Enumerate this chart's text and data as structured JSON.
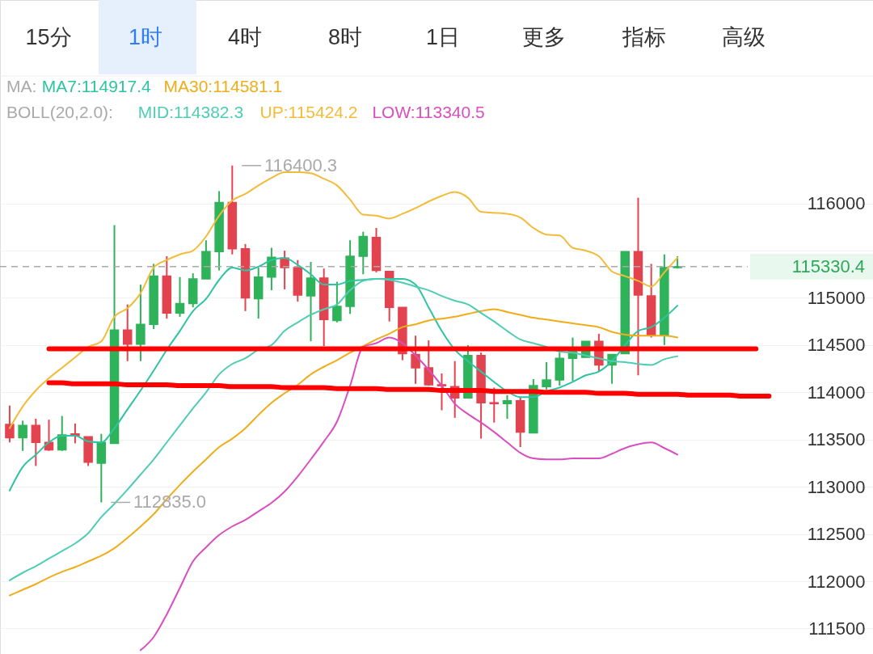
{
  "chart_data": {
    "type": "candlestick",
    "categories": [
      null,
      null,
      null,
      null,
      null,
      null,
      null,
      null,
      null,
      null,
      null,
      null,
      null,
      null,
      null,
      null,
      null,
      null,
      null,
      null,
      null,
      null,
      null,
      null,
      null,
      null,
      null,
      null,
      null,
      null,
      null,
      null,
      null,
      null,
      null,
      null,
      null,
      null,
      null,
      null,
      null,
      null,
      null,
      null,
      null,
      null,
      null,
      null,
      null,
      null,
      null,
      null,
      null,
      null,
      null,
      null,
      null,
      null,
      null
    ],
    "ohlc": [
      [
        113660,
        113860,
        113470,
        113520
      ],
      [
        113520,
        113700,
        113380,
        113650
      ],
      [
        113650,
        113720,
        113220,
        113470
      ],
      [
        113470,
        113710,
        113380,
        113390
      ],
      [
        113390,
        113750,
        113380,
        113550
      ],
      [
        113560,
        113670,
        113460,
        113540
      ],
      [
        113530,
        113530,
        113220,
        113260
      ],
      [
        113250,
        113560,
        112835.0,
        113470
      ],
      [
        113460,
        115770,
        113460,
        114660
      ],
      [
        114660,
        114930,
        114330,
        114510
      ],
      [
        114510,
        115140,
        114330,
        114720
      ],
      [
        114720,
        115360,
        114670,
        115230
      ],
      [
        115230,
        115440,
        114780,
        114840
      ],
      [
        114840,
        115220,
        114800,
        114940
      ],
      [
        114940,
        115260,
        114900,
        115200
      ],
      [
        115200,
        115610,
        115200,
        115490
      ],
      [
        115490,
        116130,
        115290,
        116010
      ],
      [
        116010,
        116400.3,
        115460,
        115520
      ],
      [
        115520,
        115570,
        114860,
        115000
      ],
      [
        114990,
        115320,
        114780,
        115220
      ],
      [
        115220,
        115530,
        115080,
        115430
      ],
      [
        115420,
        115500,
        115090,
        115320
      ],
      [
        115320,
        115400,
        114960,
        115030
      ],
      [
        115020,
        115380,
        114540,
        115210
      ],
      [
        115210,
        115310,
        114490,
        114770
      ],
      [
        114760,
        115170,
        114740,
        114910
      ],
      [
        114910,
        115610,
        114830,
        115440
      ],
      [
        115440,
        115700,
        115250,
        115650
      ],
      [
        115640,
        115740,
        115270,
        115290
      ],
      [
        115280,
        115280,
        114750,
        114900
      ],
      [
        114900,
        114900,
        114340,
        114410
      ],
      [
        114400,
        114600,
        114090,
        114260
      ],
      [
        114260,
        114550,
        114070,
        114080
      ],
      [
        114080,
        114200,
        113810,
        114070
      ],
      [
        114060,
        114330,
        113730,
        113940
      ],
      [
        113940,
        114500,
        113940,
        114390
      ],
      [
        114390,
        114420,
        113510,
        113890
      ],
      [
        113890,
        114050,
        113680,
        113880
      ],
      [
        113880,
        113970,
        113720,
        113910
      ],
      [
        113910,
        113950,
        113420,
        113580
      ],
      [
        113570,
        114140,
        113570,
        114070
      ],
      [
        114060,
        114320,
        114030,
        114130
      ],
      [
        114130,
        114420,
        114070,
        114360
      ],
      [
        114360,
        114580,
        114120,
        114430
      ],
      [
        114370,
        114540,
        114370,
        114540
      ],
      [
        114540,
        114620,
        114220,
        114290
      ],
      [
        114290,
        114400,
        114090,
        114400
      ],
      [
        114410,
        115490,
        114410,
        115490
      ],
      [
        115490,
        116060,
        114180,
        115030
      ],
      [
        115020,
        115360,
        114580,
        114600
      ],
      [
        114600,
        115460,
        114500,
        115320
      ],
      [
        115320,
        115440,
        115310,
        115330.4
      ],
      null,
      null,
      null,
      null,
      null,
      null,
      null
    ],
    "series": [
      {
        "name": "MA7:114917.4",
        "type": "line",
        "color": "#2ec4a2",
        "values": [
          112960,
          113210,
          113340,
          113470,
          113540,
          113540,
          113480,
          113470,
          113620,
          113820,
          114020,
          114230,
          114450,
          114650,
          114860,
          114990,
          115190,
          115320,
          115290,
          115330,
          115400,
          115420,
          115350,
          115250,
          115140,
          115140,
          115180,
          115190,
          115200,
          115200,
          115200,
          115140,
          114900,
          114650,
          114450,
          114330,
          114220,
          114110,
          114010,
          113950,
          113950,
          114010,
          114050,
          114110,
          114180,
          114220,
          114330,
          114500,
          114650,
          114690,
          114790,
          114917.4,
          null,
          null,
          null,
          null,
          null,
          null,
          null
        ]
      },
      {
        "name": "MA30:114581.1",
        "type": "line",
        "color": "#efad1a",
        "values": [
          111850,
          111910,
          111970,
          112040,
          112100,
          112150,
          112210,
          112270,
          112350,
          112460,
          112580,
          112710,
          112870,
          113020,
          113160,
          113290,
          113420,
          113510,
          113620,
          113760,
          113890,
          113990,
          114080,
          114190,
          114270,
          114340,
          114420,
          114490,
          114560,
          114620,
          114690,
          114720,
          114760,
          114780,
          114800,
          114830,
          114860,
          114880,
          114850,
          114820,
          114790,
          114770,
          114750,
          114730,
          114710,
          114690,
          114640,
          114610,
          114600,
          114600,
          114600,
          114581.1,
          null,
          null,
          null,
          null,
          null,
          null,
          null
        ]
      },
      {
        "name": "MID:114382.3",
        "type": "line",
        "color": "#4fcdb4",
        "values": [
          112010,
          112090,
          112160,
          112240,
          112320,
          112400,
          112510,
          112680,
          112820,
          112970,
          113130,
          113290,
          113470,
          113650,
          113830,
          114000,
          114190,
          114300,
          114360,
          114450,
          114500,
          114650,
          114740,
          114820,
          114880,
          114930,
          115080,
          115180,
          115200,
          115190,
          115160,
          115120,
          115080,
          115020,
          114970,
          114930,
          114840,
          114750,
          114650,
          114560,
          114520,
          114480,
          114430,
          114420,
          114390,
          114360,
          114330,
          114320,
          114300,
          114290,
          114350,
          114382.3,
          null,
          null,
          null,
          null,
          null,
          null,
          null
        ]
      },
      {
        "name": "UP:115424.2",
        "type": "line",
        "color": "#f3bc38",
        "values": [
          113620,
          113850,
          114020,
          114150,
          114260,
          114370,
          114480,
          114540,
          114800,
          114890,
          115050,
          115320,
          115400,
          115460,
          115500,
          115650,
          115870,
          116030,
          116100,
          116190,
          116270,
          116330,
          116330,
          116320,
          116260,
          116190,
          116040,
          115880,
          115870,
          115840,
          115890,
          115950,
          116020,
          116080,
          116120,
          116060,
          115910,
          115900,
          115890,
          115850,
          115740,
          115670,
          115660,
          115530,
          115500,
          115440,
          115280,
          115230,
          115180,
          115120,
          115270,
          115424.2,
          null,
          null,
          null,
          null,
          null,
          null,
          null
        ]
      },
      {
        "name": "LOW:113340.5",
        "type": "line",
        "color": "#d94fbf",
        "values": [
          null,
          null,
          null,
          null,
          null,
          null,
          null,
          null,
          null,
          null,
          111270,
          111410,
          111650,
          111930,
          112210,
          112360,
          112490,
          112580,
          112650,
          112740,
          112830,
          112950,
          113110,
          113290,
          113480,
          113690,
          114070,
          114480,
          114520,
          114580,
          114520,
          114390,
          114240,
          114070,
          113880,
          113770,
          113680,
          113580,
          113470,
          113360,
          113300,
          113290,
          113290,
          113300,
          113300,
          113300,
          113350,
          113410,
          113450,
          113470,
          113410,
          113340.5,
          null,
          null,
          null,
          null,
          null,
          null,
          null
        ]
      },
      {
        "type": "line",
        "color": "#ff0000",
        "values": [
          null,
          null,
          null,
          114460,
          114460,
          114460,
          114460,
          114460,
          114460,
          114460,
          114460,
          114460,
          114460,
          114460,
          114460,
          114460,
          114460,
          114460,
          114460,
          114460,
          114460,
          114460,
          114460,
          114460,
          114460,
          114460,
          114460,
          114460,
          114460,
          114460,
          114460,
          114460,
          114460,
          114460,
          114460,
          114460,
          114460,
          114460,
          114460,
          114460,
          114460,
          114460,
          114460,
          114460,
          114460,
          114460,
          114460,
          114460,
          114460,
          114460,
          114460,
          114460,
          114460,
          114460,
          114460,
          114460,
          114460,
          114460,
          null
        ]
      },
      {
        "type": "line",
        "color": "#ff0000",
        "values": [
          null,
          null,
          null,
          114100,
          114100,
          114090,
          114090,
          114090,
          114090,
          114080,
          114080,
          114080,
          114080,
          114070,
          114070,
          114070,
          114070,
          114060,
          114060,
          114060,
          114060,
          114050,
          114050,
          114050,
          114050,
          114040,
          114040,
          114040,
          114040,
          114030,
          114030,
          114030,
          114030,
          114020,
          114020,
          114020,
          114020,
          114010,
          114010,
          114010,
          114010,
          114000,
          114000,
          114000,
          114000,
          113990,
          113990,
          113990,
          113980,
          113980,
          113980,
          113980,
          113970,
          113970,
          113970,
          113970,
          113960,
          113960,
          113960
        ]
      }
    ],
    "ylim": [
      111230,
      117340
    ],
    "yticks": [
      111500,
      112000,
      112500,
      113000,
      113500,
      114000,
      114500,
      115000,
      {
        "value": 115500,
        "label": null
      },
      116000
    ],
    "grid": "y",
    "legend": "top",
    "tick_labels": "y",
    "ref_lines": [
      {
        "axis": "y",
        "value": 115330.4,
        "label": "115330.4",
        "color": "#aaaaaa",
        "line_style": "dashed"
      }
    ],
    "annotations": [
      "15分",
      "1时",
      "4时",
      "8时",
      "1日",
      "更多",
      "指标",
      "高级",
      "MA:",
      "BOLL(20,2.0):",
      "116400.3",
      "112835.0"
    ]
  }
}
